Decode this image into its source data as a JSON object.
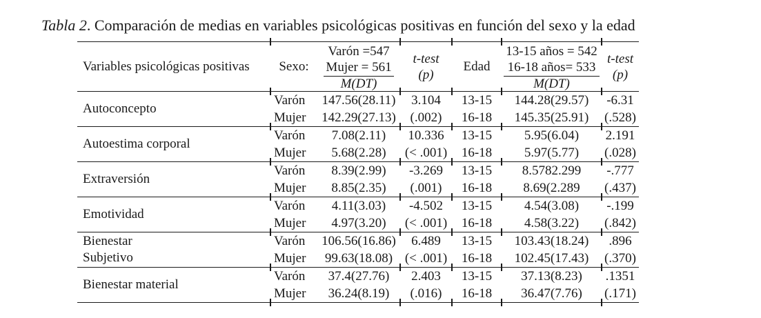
{
  "title": {
    "label": "Tabla 2",
    "text": ". Comparación de medias en variables psicológicas positivas en función del sexo y la edad"
  },
  "header": {
    "variables": "Variables psicológicas positivas",
    "sexo_label": "Sexo:",
    "sexo_n1": "Varón =547",
    "sexo_n2": "Mujer = 561",
    "mdt": "M(DT)",
    "ttest_line1": "t-test",
    "ttest_line2": "(p)",
    "edad_label": "Edad",
    "edad_n1": "13-15 años = 542",
    "edad_n2": "16-18 años= 533",
    "mdt2": "M(DT)",
    "ttest2_line1": "t-test",
    "ttest2_line2": "(p)"
  },
  "groups": [
    {
      "name": "Autoconcepto",
      "rows": [
        {
          "sexo": "Varón",
          "mdt": "147.56(28.11)",
          "t": "3.104",
          "edad": "13-15",
          "mdt_edad": "144.28(29.57)",
          "t_edad": "-6.31"
        },
        {
          "sexo": "Mujer",
          "mdt": "142.29(27.13)",
          "t": "(.002)",
          "edad": "16-18",
          "mdt_edad": "145.35(25.91)",
          "t_edad": "(.528)"
        }
      ]
    },
    {
      "name": "Autoestima corporal",
      "rows": [
        {
          "sexo": "Varón",
          "mdt": "7.08(2.11)",
          "t": "10.336",
          "edad": "13-15",
          "mdt_edad": "5.95(6.04)",
          "t_edad": "2.191"
        },
        {
          "sexo": "Mujer",
          "mdt": "5.68(2.28)",
          "t": "(< .001)",
          "edad": "16-18",
          "mdt_edad": "5.97(5.77)",
          "t_edad": "(.028)"
        }
      ]
    },
    {
      "name": "Extraversión",
      "rows": [
        {
          "sexo": "Varón",
          "mdt": "8.39(2.99)",
          "t": "-3.269",
          "edad": "13-15",
          "mdt_edad": "8.5782.299",
          "t_edad": "-.777"
        },
        {
          "sexo": "Mujer",
          "mdt": "8.85(2.35)",
          "t": "(.001)",
          "edad": "16-18",
          "mdt_edad": "8.69(2.289",
          "t_edad": "(.437)"
        }
      ]
    },
    {
      "name": "Emotividad",
      "rows": [
        {
          "sexo": "Varón",
          "mdt": "4.11(3.03)",
          "t": "-4.502",
          "edad": "13-15",
          "mdt_edad": "4.54(3.08)",
          "t_edad": "-.199"
        },
        {
          "sexo": "Mujer",
          "mdt": "4.97(3.20)",
          "t": "(< .001)",
          "edad": "16-18",
          "mdt_edad": "4.58(3.22)",
          "t_edad": "(.842)"
        }
      ]
    },
    {
      "name": "Bienestar\nSubjetivo",
      "rows": [
        {
          "sexo": "Varón",
          "mdt": "106.56(16.86)",
          "t": "6.489",
          "edad": "13-15",
          "mdt_edad": "103.43(18.24)",
          "t_edad": ".896"
        },
        {
          "sexo": "Mujer",
          "mdt": "99.63(18.08)",
          "t": "(< .001)",
          "edad": "16-18",
          "mdt_edad": "102.45(17.43)",
          "t_edad": "(.370)"
        }
      ]
    },
    {
      "name": "Bienestar material",
      "rows": [
        {
          "sexo": "Varón",
          "mdt": "37.4(27.76)",
          "t": "2.403",
          "edad": "13-15",
          "mdt_edad": "37.13(8.23)",
          "t_edad": ".1351"
        },
        {
          "sexo": "Mujer",
          "mdt": "36.24(8.19)",
          "t": "(.016)",
          "edad": "16-18",
          "mdt_edad": "36.47(7.76)",
          "t_edad": "(.171)"
        }
      ]
    }
  ]
}
